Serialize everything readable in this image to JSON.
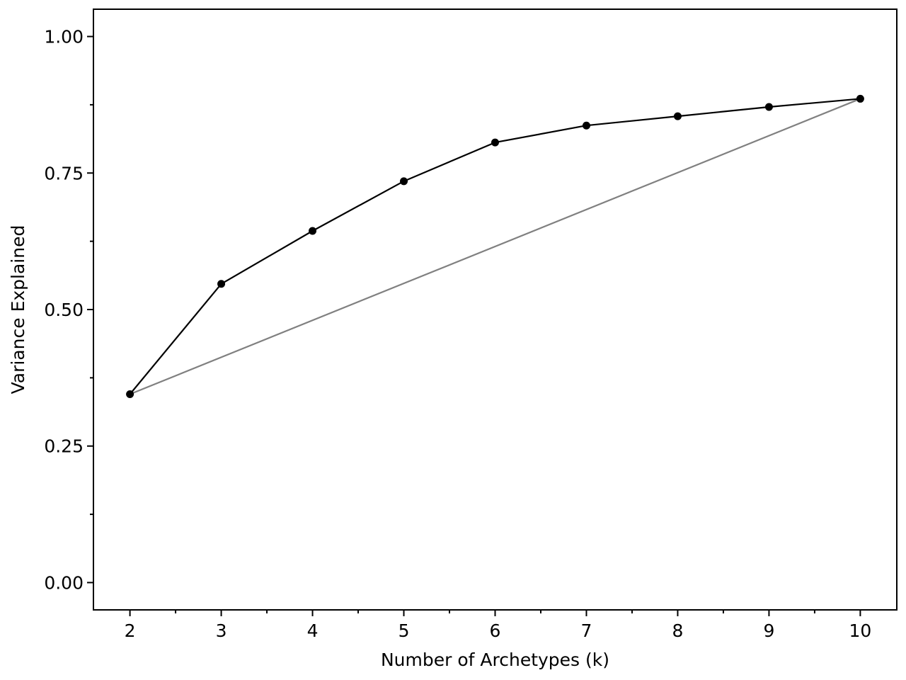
{
  "chart_data": {
    "type": "line",
    "title": "",
    "xlabel": "Number of Archetypes (k)",
    "ylabel": "Variance Explained",
    "x": [
      2,
      3,
      4,
      5,
      6,
      7,
      8,
      9,
      10
    ],
    "series": [
      {
        "values": [
          0.345,
          0.547,
          0.644,
          0.735,
          0.806,
          0.837,
          0.854,
          0.871,
          0.886
        ],
        "color": "#000000",
        "marker": "circle"
      },
      {
        "values": [
          0.345,
          0.886
        ],
        "x": [
          2,
          10
        ],
        "color": "#808080",
        "marker": "none"
      }
    ],
    "xlim": [
      1.6,
      10.4
    ],
    "ylim": [
      -0.05,
      1.05
    ],
    "xticks": [
      "2",
      "3",
      "4",
      "5",
      "6",
      "7",
      "8",
      "9",
      "10"
    ],
    "xtick_values": [
      2,
      3,
      4,
      5,
      6,
      7,
      8,
      9,
      10
    ],
    "xminor_ticks": [
      2.5,
      3.5,
      4.5,
      5.5,
      6.5,
      7.5,
      8.5,
      9.5
    ],
    "yticks": [
      "0.00",
      "0.25",
      "0.50",
      "0.75",
      "1.00"
    ],
    "ytick_values": [
      0,
      0.25,
      0.5,
      0.75,
      1.0
    ],
    "yminor_ticks": [
      0.125,
      0.375,
      0.625,
      0.875
    ],
    "grid": false,
    "legend": "none"
  }
}
